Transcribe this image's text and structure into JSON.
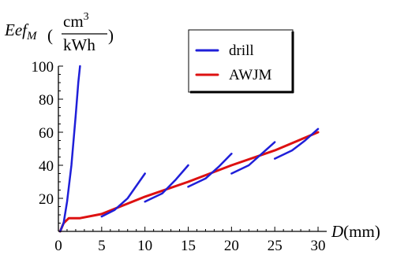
{
  "chart_data": {
    "type": "line",
    "title": "",
    "xlabel": "D",
    "xunit": "(mm)",
    "ylabel": {
      "base": "Eef",
      "subscript": "M",
      "unit_open": "(",
      "unit_numerator": "cm",
      "unit_numerator_sup": "3",
      "unit_denominator": "kWh",
      "unit_close": ")"
    },
    "xlim": [
      0,
      31
    ],
    "ylim": [
      0,
      100
    ],
    "xticks": [
      0,
      5,
      10,
      15,
      20,
      25,
      30
    ],
    "yticks": [
      20,
      40,
      60,
      80,
      100
    ],
    "grid": false,
    "legend_position": "top-right",
    "series": [
      {
        "name": "drill",
        "color": "#1f1fd9",
        "segments": [
          [
            [
              0.2,
              0
            ],
            [
              0.6,
              5
            ],
            [
              1.0,
              18
            ],
            [
              1.5,
              40
            ],
            [
              2.0,
              70
            ],
            [
              2.3,
              90
            ],
            [
              2.5,
              100
            ]
          ],
          [
            [
              5,
              9
            ],
            [
              6.5,
              13
            ],
            [
              8,
              20
            ],
            [
              10,
              35
            ]
          ],
          [
            [
              10,
              18
            ],
            [
              12,
              23
            ],
            [
              13.5,
              31
            ],
            [
              15,
              40
            ]
          ],
          [
            [
              15,
              27
            ],
            [
              17,
              32
            ],
            [
              18.5,
              39
            ],
            [
              20,
              47
            ]
          ],
          [
            [
              20,
              35
            ],
            [
              22,
              40
            ],
            [
              23.5,
              47
            ],
            [
              25,
              54
            ]
          ],
          [
            [
              25,
              44
            ],
            [
              27,
              49
            ],
            [
              28.5,
              55
            ],
            [
              30,
              62
            ]
          ]
        ]
      },
      {
        "name": "AWJM",
        "color": "#dd1111",
        "points": [
          [
            0.2,
            0
          ],
          [
            0.6,
            5
          ],
          [
            1.2,
            8
          ],
          [
            2.5,
            8
          ],
          [
            5,
            10.5
          ],
          [
            10,
            21
          ],
          [
            15,
            30
          ],
          [
            20,
            40
          ],
          [
            25,
            49
          ],
          [
            30,
            60
          ]
        ]
      }
    ]
  }
}
